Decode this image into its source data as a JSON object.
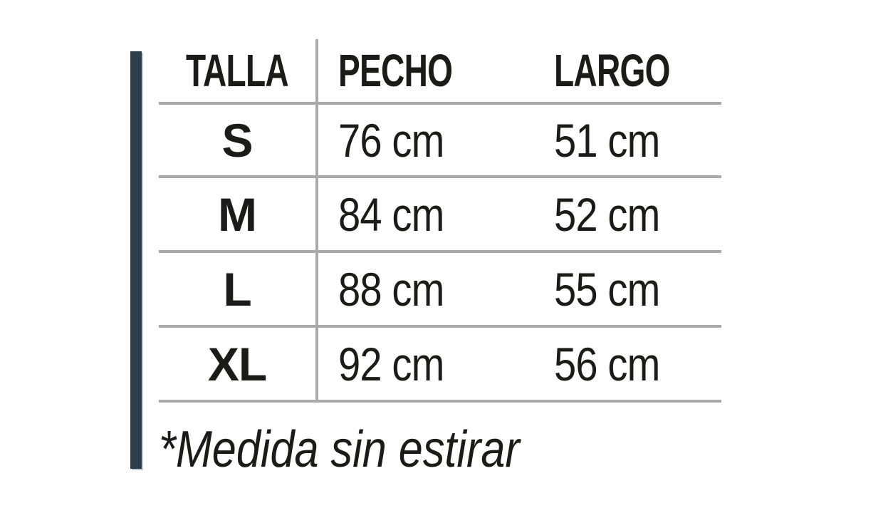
{
  "colors": {
    "accent": "#2d3f4b",
    "line": "#a9a9a9",
    "ink": "#1b1b19",
    "bg": "#ffffff"
  },
  "chart_data": {
    "type": "table",
    "title": "",
    "columns": [
      "TALLA",
      "PECHO",
      "LARGO"
    ],
    "rows": [
      [
        "S",
        "76 cm",
        "51 cm"
      ],
      [
        "M",
        "84 cm",
        "52 cm"
      ],
      [
        "L",
        "88 cm",
        "55 cm"
      ],
      [
        "XL",
        "92 cm",
        "56 cm"
      ]
    ],
    "rows_structured": [
      {
        "talla": "S",
        "pecho_cm": 76,
        "largo_cm": 51
      },
      {
        "talla": "M",
        "pecho_cm": 84,
        "largo_cm": 52
      },
      {
        "talla": "L",
        "pecho_cm": 88,
        "largo_cm": 55
      },
      {
        "talla": "XL",
        "pecho_cm": 92,
        "largo_cm": 56
      }
    ],
    "footnote": "*Medida sin estirar",
    "layout": {
      "grid": "horizontal row separators + single vertical separator after first column",
      "legend": "none"
    }
  }
}
